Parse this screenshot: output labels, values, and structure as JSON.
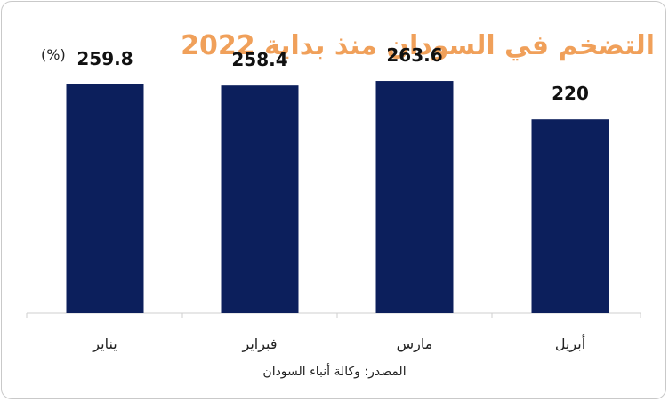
{
  "chart_data": {
    "type": "bar",
    "title": "التضخم في السودان منذ بداية 2022",
    "unit_label": "(%)",
    "categories": [
      "يناير",
      "فبراير",
      "مارس",
      "أبريل"
    ],
    "values": [
      259.8,
      258.4,
      263.6,
      220
    ],
    "value_labels": [
      "259.8",
      "258.4",
      "263.6",
      "220"
    ],
    "ylim": [
      0,
      300
    ],
    "grid": false,
    "bar_color": "#0c1f5c",
    "title_color": "#f0a05a",
    "source": "المصدر: وكالة أنباء السودان"
  }
}
